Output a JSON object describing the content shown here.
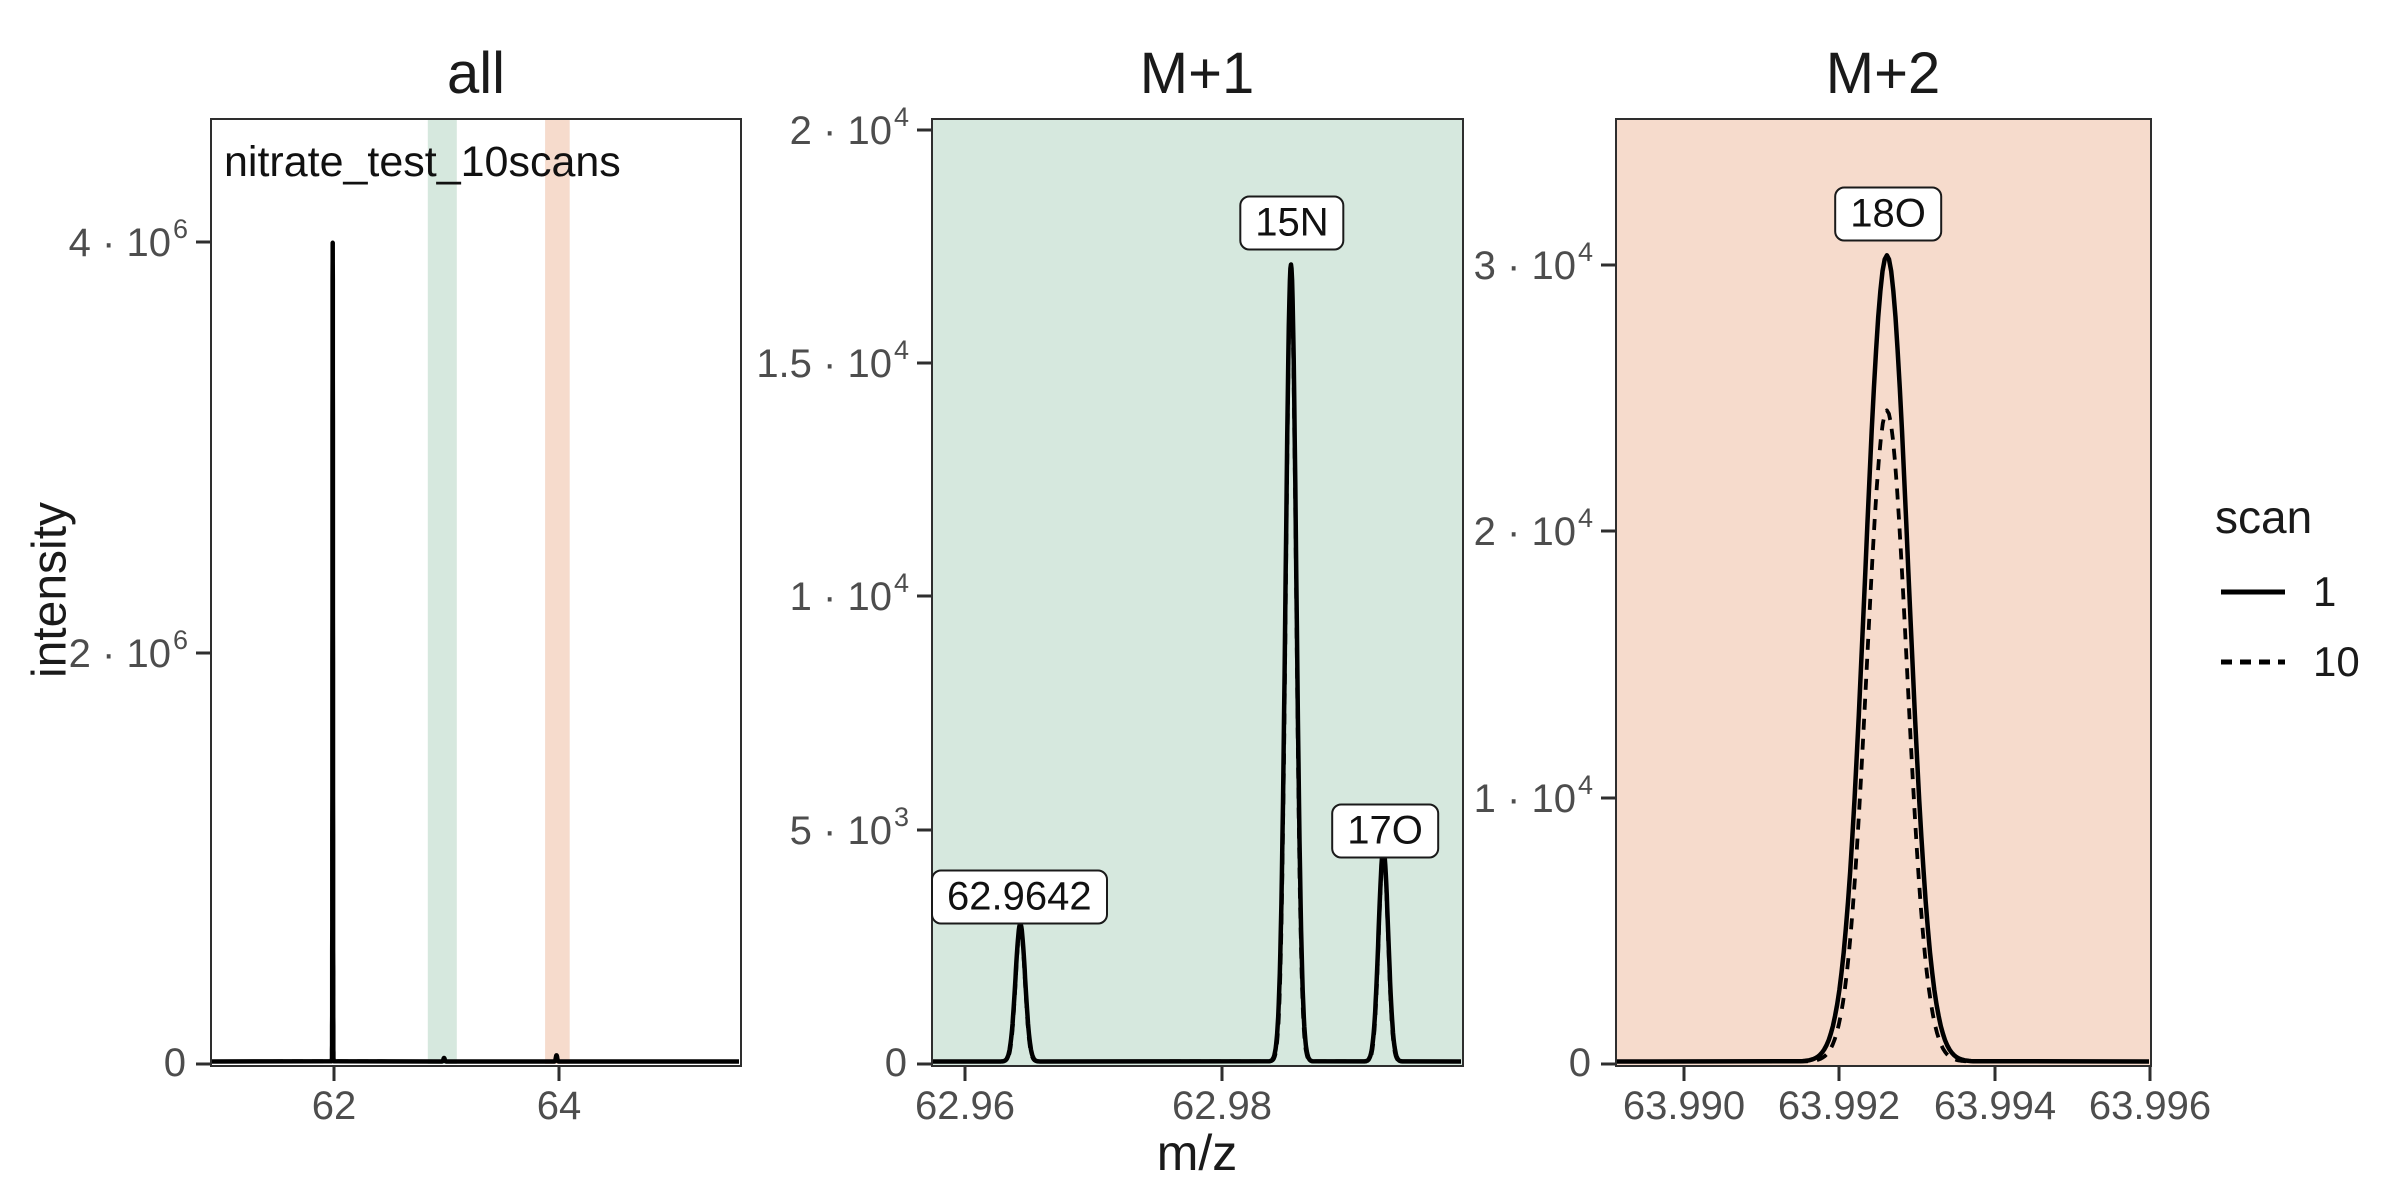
{
  "figure": {
    "ylabel": "intensity",
    "xlabel": "m/z",
    "annotation": "nitrate_test_10scans",
    "legend": {
      "title": "scan",
      "items": [
        {
          "label": "1",
          "line": "solid"
        },
        {
          "label": "10",
          "line": "dashed"
        }
      ]
    },
    "colors": {
      "m1_highlight": "#d6e8de",
      "m2_highlight": "#f6dbcc",
      "spectrum_line": "#000000",
      "panel_border": "#2e2e2e",
      "tick_text": "#4d4d4d",
      "title_text": "#1a1a1a",
      "label_box_bg": "#ffffff"
    }
  },
  "chart_data": [
    {
      "type": "line",
      "title": "all",
      "bg": "#ffffff",
      "xlim": [
        60.907,
        65.627
      ],
      "ylim": [
        0,
        4600000
      ],
      "x_ticks": [
        {
          "v": 62,
          "label": "62"
        },
        {
          "v": 64,
          "label": "64"
        }
      ],
      "y_ticks": [
        {
          "v": 4000000,
          "base": "4 · 10",
          "exp": "6"
        },
        {
          "v": 2000000,
          "base": "2 · 10",
          "exp": "6"
        },
        {
          "v": 0,
          "base": "0",
          "exp": ""
        }
      ],
      "bands": [
        {
          "from": 62.84,
          "to": 63.1,
          "color": "#d6e8de",
          "name": "M+1 window"
        },
        {
          "from": 63.89,
          "to": 64.11,
          "color": "#f6dbcc",
          "name": "M+2 window"
        }
      ],
      "series": [
        {
          "name": "1",
          "dash": false,
          "peaks": [
            {
              "mz": 61.988,
              "intensity": 4000000,
              "sigma": 0.002
            },
            {
              "mz": 62.9855,
              "intensity": 17000,
              "sigma": 0.006
            },
            {
              "mz": 63.9926,
              "intensity": 30000,
              "sigma": 0.006
            }
          ]
        },
        {
          "name": "10",
          "dash": true,
          "peaks": [
            {
              "mz": 61.988,
              "intensity": 3950000,
              "sigma": 0.002
            },
            {
              "mz": 62.9855,
              "intensity": 16800,
              "sigma": 0.006
            },
            {
              "mz": 63.9926,
              "intensity": 24500,
              "sigma": 0.006
            }
          ]
        }
      ],
      "peak_labels": []
    },
    {
      "type": "line",
      "title": "M+1",
      "bg": "#d6e8de",
      "xlim": [
        62.95734,
        62.99883
      ],
      "ylim": [
        0,
        20200
      ],
      "x_ticks": [
        {
          "v": 62.96,
          "label": "62.96"
        },
        {
          "v": 62.98,
          "label": "62.98"
        }
      ],
      "y_ticks": [
        {
          "v": 20000,
          "base": "2 · 10",
          "exp": "4"
        },
        {
          "v": 15000,
          "base": "1.5 · 10",
          "exp": "4"
        },
        {
          "v": 10000,
          "base": "1 · 10",
          "exp": "4"
        },
        {
          "v": 5000,
          "base": "5 · 10",
          "exp": "3"
        },
        {
          "v": 0,
          "base": "0",
          "exp": ""
        }
      ],
      "bands": [],
      "series": [
        {
          "name": "1",
          "dash": false,
          "peaks": [
            {
              "mz": 62.9642,
              "intensity": 2950,
              "sigma": 0.00038
            },
            {
              "mz": 62.98547,
              "intensity": 17100,
              "sigma": 0.00042
            },
            {
              "mz": 62.99273,
              "intensity": 4550,
              "sigma": 0.00038
            }
          ]
        },
        {
          "name": "10",
          "dash": true,
          "peaks": [
            {
              "mz": 62.9642,
              "intensity": 2900,
              "sigma": 0.00036
            },
            {
              "mz": 62.98547,
              "intensity": 16850,
              "sigma": 0.0004
            },
            {
              "mz": 62.99273,
              "intensity": 4480,
              "sigma": 0.00036
            }
          ]
        }
      ],
      "peak_labels": [
        {
          "text": "62.9642",
          "mz": 62.9642
        },
        {
          "text": "15N",
          "mz": 62.98547
        },
        {
          "text": "17O",
          "mz": 62.99273
        }
      ]
    },
    {
      "type": "line",
      "title": "M+2",
      "bg": "#f6dbcc",
      "xlim": [
        63.98911,
        63.99601
      ],
      "ylim": [
        0,
        35500
      ],
      "x_ticks": [
        {
          "v": 63.99,
          "label": "63.990"
        },
        {
          "v": 63.992,
          "label": "63.992"
        },
        {
          "v": 63.994,
          "label": "63.994"
        },
        {
          "v": 63.996,
          "label": "63.996"
        }
      ],
      "y_ticks": [
        {
          "v": 30000,
          "base": "3 · 10",
          "exp": "4"
        },
        {
          "v": 20000,
          "base": "2 · 10",
          "exp": "4"
        },
        {
          "v": 10000,
          "base": "1 · 10",
          "exp": "4"
        },
        {
          "v": 0,
          "base": "0",
          "exp": ""
        }
      ],
      "bands": [],
      "series": [
        {
          "name": "1",
          "dash": false,
          "peaks": [
            {
              "mz": 63.99261,
              "intensity": 30400,
              "sigma": 0.00028
            }
          ]
        },
        {
          "name": "10",
          "dash": true,
          "peaks": [
            {
              "mz": 63.99261,
              "intensity": 24550,
              "sigma": 0.00026
            }
          ]
        }
      ],
      "peak_labels": [
        {
          "text": "18O",
          "mz": 63.99261
        }
      ]
    }
  ]
}
